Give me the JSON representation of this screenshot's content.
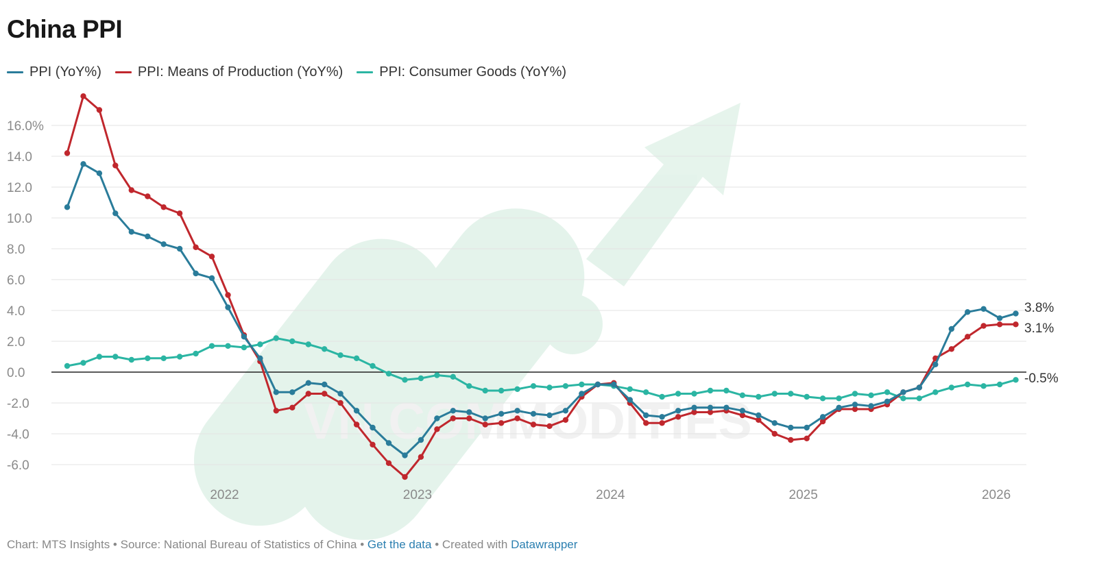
{
  "title": "China PPI",
  "legend": [
    {
      "label": "PPI (YoY%)",
      "color": "#2a7c9a"
    },
    {
      "label": "PPI: Means of Production (YoY%)",
      "color": "#c0272d"
    },
    {
      "label": "PPI: Consumer Goods (YoY%)",
      "color": "#2bb5a3"
    }
  ],
  "footer": {
    "chart_prefix": "Chart: MTS Insights • Source: National Bureau of Statistics of China • ",
    "get_data": "Get the data",
    "separator": " • Created with ",
    "datawrapper": "Datawrapper"
  },
  "watermark": "VN COMMODITIES",
  "chart_data": {
    "type": "line",
    "title": "China PPI",
    "x_start": "2021-09",
    "x_end": "2026-09",
    "x_ticks": [
      "2022",
      "2023",
      "2024",
      "2025",
      "2026"
    ],
    "y_ticks": [
      "16.0%",
      "14.0",
      "12.0",
      "10.0",
      "8.0",
      "6.0",
      "4.0",
      "2.0",
      "0.0",
      "-2.0",
      "-4.0",
      "-6.0"
    ],
    "ylim": [
      -7,
      18
    ],
    "grid": true,
    "legend_position": "top-left",
    "end_labels": [
      "3.8%",
      "3.1%",
      "-0.5%"
    ],
    "series": [
      {
        "name": "PPI (YoY%)",
        "color": "#2a7c9a",
        "values": [
          10.7,
          13.5,
          12.9,
          10.3,
          9.1,
          8.8,
          8.3,
          8.0,
          6.4,
          6.1,
          4.2,
          2.3,
          0.9,
          -1.3,
          -1.3,
          -0.7,
          -0.8,
          -1.4,
          -2.5,
          -3.6,
          -4.6,
          -5.4,
          -4.4,
          -3.0,
          -2.5,
          -2.6,
          -3.0,
          -2.7,
          -2.5,
          -2.7,
          -2.8,
          -2.5,
          -1.4,
          -0.8,
          -0.8,
          -1.8,
          -2.8,
          -2.9,
          -2.5,
          -2.3,
          -2.3,
          -2.3,
          -2.5,
          -2.8,
          -3.3,
          -3.6,
          -3.6,
          -2.9,
          -2.3,
          -2.1,
          -2.2,
          -1.9,
          -1.3,
          -1.0,
          0.5,
          2.8,
          3.9,
          4.1,
          3.5,
          3.8
        ]
      },
      {
        "name": "PPI: Means of Production (YoY%)",
        "color": "#c0272d",
        "values": [
          14.2,
          17.9,
          17.0,
          13.4,
          11.8,
          11.4,
          10.7,
          10.3,
          8.1,
          7.5,
          5.0,
          2.4,
          0.7,
          -2.5,
          -2.3,
          -1.4,
          -1.4,
          -2.0,
          -3.4,
          -4.7,
          -5.9,
          -6.8,
          -5.5,
          -3.7,
          -3.0,
          -3.0,
          -3.4,
          -3.3,
          -3.0,
          -3.4,
          -3.5,
          -3.1,
          -1.6,
          -0.8,
          -0.7,
          -2.0,
          -3.3,
          -3.3,
          -2.9,
          -2.6,
          -2.6,
          -2.5,
          -2.8,
          -3.1,
          -4.0,
          -4.4,
          -4.3,
          -3.2,
          -2.4,
          -2.4,
          -2.4,
          -2.1,
          -1.3,
          -1.0,
          0.9,
          1.5,
          2.3,
          3.0,
          3.1,
          3.1
        ]
      },
      {
        "name": "PPI: Consumer Goods (YoY%)",
        "color": "#2bb5a3",
        "values": [
          0.4,
          0.6,
          1.0,
          1.0,
          0.8,
          0.9,
          0.9,
          1.0,
          1.2,
          1.7,
          1.7,
          1.6,
          1.8,
          2.2,
          2.0,
          1.8,
          1.5,
          1.1,
          0.9,
          0.4,
          -0.1,
          -0.5,
          -0.4,
          -0.2,
          -0.3,
          -0.9,
          -1.2,
          -1.2,
          -1.1,
          -0.9,
          -1.0,
          -0.9,
          -0.8,
          -0.8,
          -0.9,
          -1.1,
          -1.3,
          -1.6,
          -1.4,
          -1.4,
          -1.2,
          -1.2,
          -1.5,
          -1.6,
          -1.4,
          -1.4,
          -1.6,
          -1.7,
          -1.7,
          -1.4,
          -1.5,
          -1.3,
          -1.7,
          -1.7,
          -1.3,
          -1.0,
          -0.8,
          -0.9,
          -0.8,
          -0.5
        ]
      }
    ]
  }
}
